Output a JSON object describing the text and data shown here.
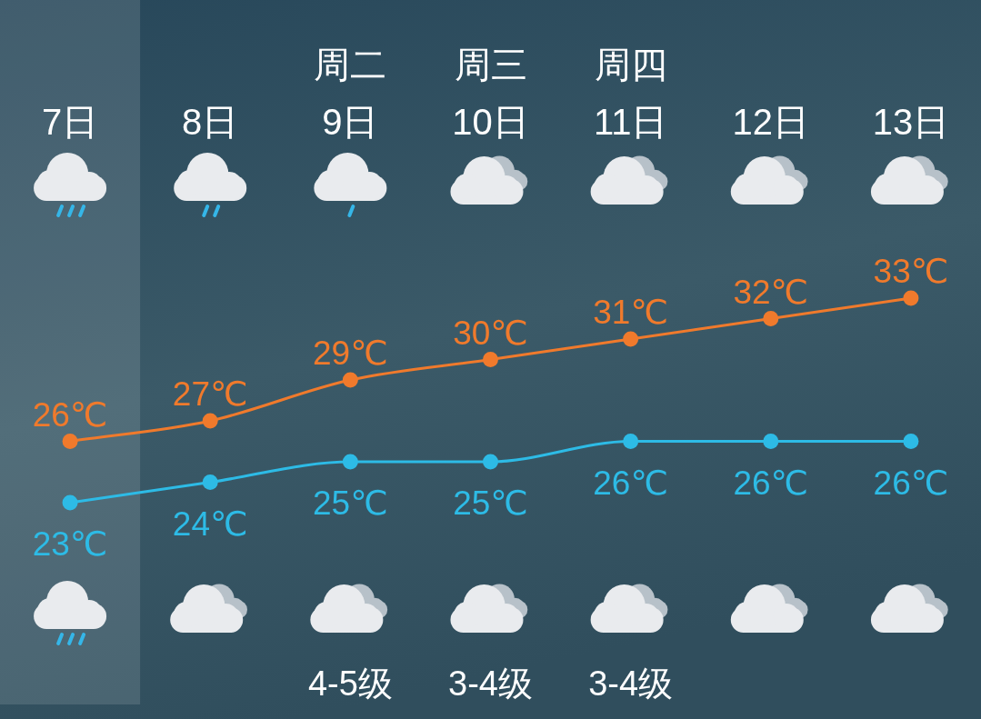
{
  "chart_data": {
    "type": "line",
    "tick_labels": "x",
    "marker": "circle",
    "line_style": "solid",
    "categories": [
      "7日",
      "8日",
      "周二\n9日",
      "周三\n10日",
      "周四\n11日",
      "12日",
      "13日"
    ],
    "series": [
      {
        "color": "#f07a2c",
        "values": [
          26,
          27,
          29,
          30,
          31,
          32,
          33
        ],
        "value_labels": [
          "26℃",
          "27℃",
          "29℃",
          "30℃",
          "31℃",
          "32℃",
          "33℃"
        ]
      },
      {
        "color": "#2dbbe6",
        "values": [
          23,
          24,
          25,
          25,
          26,
          26,
          26
        ],
        "value_labels": [
          "23℃",
          "24℃",
          "25℃",
          "25℃",
          "26℃",
          "26℃",
          "26℃"
        ]
      }
    ],
    "bands": [
      {
        "axis": "x",
        "from": "7日",
        "to": "7日",
        "color": "#ffffff"
      }
    ],
    "annotations": [
      "4-5级",
      "3-4级",
      "3-4级"
    ]
  }
}
